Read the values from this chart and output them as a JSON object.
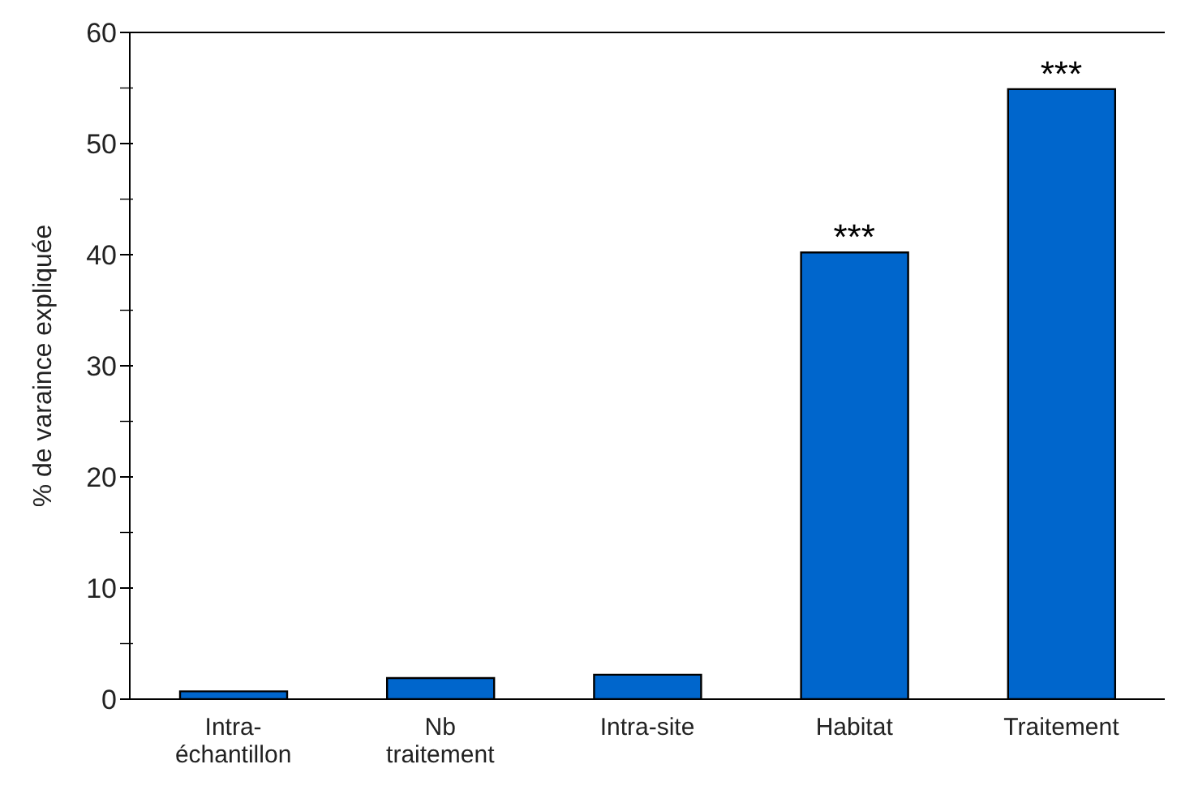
{
  "chart_data": {
    "type": "bar",
    "ylabel": "% de varaince expliquée",
    "categories": [
      "Intra-\néchantillon",
      "Nb\ntraitement",
      "Intra-site",
      "Habitat",
      "Traitement"
    ],
    "values": [
      0.7,
      1.9,
      2.2,
      40.2,
      54.9
    ],
    "color": "#0066cc",
    "ylim": [
      0,
      60
    ],
    "yticks": [
      0,
      {
        "value": 5,
        "label": null
      },
      10,
      {
        "value": 15,
        "label": null
      },
      20,
      {
        "value": 25,
        "label": null
      },
      30,
      {
        "value": 35,
        "label": null
      },
      40,
      {
        "value": 45,
        "label": null
      },
      50,
      {
        "value": 55,
        "label": null
      },
      60
    ],
    "annotations": [
      {
        "text": "***",
        "x": "Habitat",
        "y": 40.2
      },
      {
        "text": "***",
        "x": "Traitement",
        "y": 54.9
      }
    ],
    "grid": false,
    "legend": false
  }
}
